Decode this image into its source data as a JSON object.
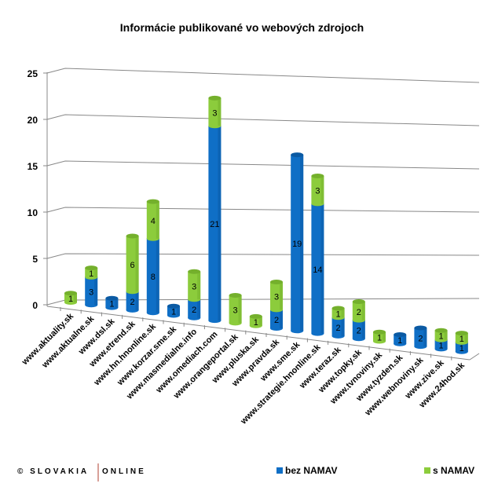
{
  "chart_data": {
    "type": "bar",
    "stacked": true,
    "style": "3d-cylinder",
    "title": "Informácie publikované vo webových zdrojoch",
    "categories": [
      "www.aktuality.sk",
      "www.aktualne.sk",
      "www.dsl.sk",
      "www.etrend.sk",
      "www.hn.hnonline.sk",
      "www.korzar.sme.sk",
      "www.masmedialne.info",
      "www.omediach.com",
      "www.orangeportal.sk",
      "www.pluska.sk",
      "www.pravda.sk",
      "www.sme.sk",
      "www.strategie.hnonline.sk",
      "www.teraz.sk",
      "www.topky.sk",
      "www.tvnoviny.sk",
      "www.tyzden.sk",
      "www.webnoviny.sk",
      "www.zive.sk",
      "www.24hod.sk"
    ],
    "series": [
      {
        "name": "bez NAMAV",
        "color": "#0f6fc6",
        "values": [
          0,
          3,
          1,
          2,
          8,
          1,
          2,
          21,
          0,
          0,
          2,
          19,
          14,
          2,
          2,
          0,
          1,
          2,
          1,
          1
        ]
      },
      {
        "name": "s NAMAV",
        "color": "#8ccc3c",
        "values": [
          1,
          1,
          0,
          6,
          4,
          0,
          3,
          3,
          3,
          1,
          3,
          0,
          3,
          1,
          2,
          1,
          0,
          0,
          1,
          1
        ]
      }
    ],
    "ylim": [
      0,
      25
    ],
    "yticks": [
      "0",
      "5",
      "10",
      "15",
      "20",
      "25"
    ],
    "grid": true,
    "legend_placement": "bottom"
  },
  "footer": {
    "logo_left": "© SLOVAKIA",
    "logo_right": "ONLINE"
  }
}
